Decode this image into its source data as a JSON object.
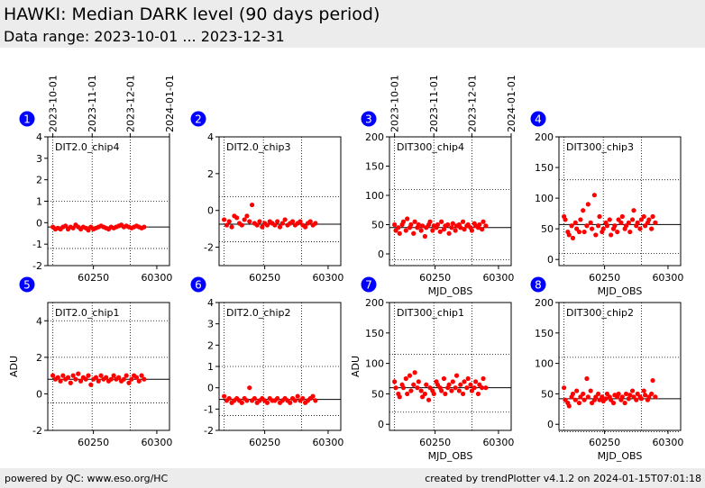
{
  "header": {
    "title": "HAWKI: Median DARK level (90 days period)",
    "subtitle": "Data range: 2023-10-01 ... 2023-12-31"
  },
  "footer": {
    "left": "powered by QC: www.eso.org/HC",
    "right": "created by trendPlotter v4.1.2 on 2024-01-15T07:01:18"
  },
  "date_axis": {
    "labels": [
      "2023-10-01",
      "2023-11-01",
      "2023-12-01",
      "2024-01-01"
    ],
    "mjd": [
      60218,
      60249,
      60279,
      60310
    ]
  },
  "colors": {
    "points": "#ff0000",
    "badge": "#0000ff",
    "median_line": "#000000"
  },
  "chart_data": [
    {
      "type": "scatter",
      "badge": "1",
      "label": "DIT2.0_chip4",
      "ylabel": "",
      "xlabel": "",
      "xlim": [
        60214,
        60310
      ],
      "ylim": [
        -2,
        4
      ],
      "yticks": [
        -2,
        -1,
        0,
        1,
        2,
        3,
        4
      ],
      "xticks": [
        60250,
        60300
      ],
      "median": -0.2,
      "hlines": [
        -1.2,
        1.0
      ],
      "date_ticks_top": true,
      "x": [
        60218,
        60220,
        60222,
        60224,
        60226,
        60228,
        60230,
        60232,
        60234,
        60236,
        60238,
        60240,
        60242,
        60244,
        60246,
        60248,
        60250,
        60252,
        60254,
        60256,
        60258,
        60260,
        60262,
        60264,
        60266,
        60268,
        60270,
        60272,
        60274,
        60276,
        60278,
        60280,
        60282,
        60284,
        60286,
        60288,
        60290
      ],
      "y": [
        -0.2,
        -0.3,
        -0.25,
        -0.3,
        -0.2,
        -0.15,
        -0.3,
        -0.2,
        -0.25,
        -0.1,
        -0.2,
        -0.3,
        -0.2,
        -0.25,
        -0.35,
        -0.2,
        -0.3,
        -0.25,
        -0.2,
        -0.15,
        -0.2,
        -0.25,
        -0.3,
        -0.2,
        -0.25,
        -0.2,
        -0.15,
        -0.1,
        -0.2,
        -0.15,
        -0.2,
        -0.25,
        -0.2,
        -0.15,
        -0.2,
        -0.25,
        -0.2
      ]
    },
    {
      "type": "scatter",
      "badge": "2",
      "label": "DIT2.0_chip3",
      "ylabel": "",
      "xlabel": "",
      "xlim": [
        60214,
        60310
      ],
      "ylim": [
        -3,
        4
      ],
      "yticks": [
        -2,
        0,
        2,
        4
      ],
      "xticks": [
        60250,
        60300
      ],
      "median": -0.75,
      "hlines": [
        -1.7,
        0.75
      ],
      "date_ticks_top": false,
      "x": [
        60218,
        60220,
        60222,
        60224,
        60226,
        60228,
        60230,
        60232,
        60234,
        60236,
        60238,
        60240,
        60242,
        60244,
        60246,
        60248,
        60250,
        60252,
        60254,
        60256,
        60258,
        60260,
        60262,
        60264,
        60266,
        60268,
        60270,
        60272,
        60274,
        60276,
        60278,
        60280,
        60282,
        60284,
        60286,
        60288,
        60290
      ],
      "y": [
        -0.5,
        -0.8,
        -0.6,
        -0.9,
        -0.3,
        -0.4,
        -0.7,
        -0.8,
        -0.5,
        -0.3,
        -0.6,
        0.3,
        -0.7,
        -0.8,
        -0.6,
        -0.9,
        -0.7,
        -0.8,
        -0.6,
        -0.7,
        -0.8,
        -0.6,
        -0.9,
        -0.7,
        -0.5,
        -0.8,
        -0.7,
        -0.6,
        -0.8,
        -0.7,
        -0.6,
        -0.8,
        -0.9,
        -0.7,
        -0.6,
        -0.8,
        -0.7
      ]
    },
    {
      "type": "scatter",
      "badge": "3",
      "label": "DIT300_chip4",
      "ylabel": "",
      "xlabel": "MJD_OBS",
      "xlim": [
        60214,
        60310
      ],
      "ylim": [
        -20,
        200
      ],
      "yticks": [
        0,
        50,
        100,
        150,
        200
      ],
      "xticks": [
        60250,
        60300
      ],
      "median": 45,
      "hlines": [
        -10,
        110
      ],
      "date_ticks_top": true,
      "x": [
        60218,
        60219,
        60221,
        60222,
        60224,
        60225,
        60227,
        60228,
        60230,
        60231,
        60233,
        60234,
        60236,
        60237,
        60239,
        60240,
        60242,
        60243,
        60245,
        60246,
        60248,
        60249,
        60251,
        60252,
        60254,
        60255,
        60257,
        60258,
        60260,
        60261,
        60263,
        60264,
        60266,
        60267,
        60269,
        60270,
        60272,
        60273,
        60275,
        60276,
        60278,
        60279,
        60281,
        60282,
        60284,
        60285,
        60287,
        60288,
        60290
      ],
      "y": [
        50,
        40,
        45,
        35,
        50,
        55,
        40,
        60,
        45,
        50,
        35,
        55,
        45,
        50,
        40,
        48,
        30,
        45,
        50,
        55,
        40,
        48,
        45,
        50,
        38,
        55,
        42,
        48,
        50,
        35,
        45,
        52,
        40,
        48,
        50,
        45,
        55,
        42,
        48,
        50,
        45,
        40,
        52,
        48,
        45,
        50,
        42,
        55,
        48
      ]
    },
    {
      "type": "scatter",
      "badge": "4",
      "label": "DIT300_chip3",
      "ylabel": "",
      "xlabel": "MJD_OBS",
      "xlim": [
        60214,
        60310
      ],
      "ylim": [
        -10,
        200
      ],
      "yticks": [
        0,
        50,
        100,
        150,
        200
      ],
      "xticks": [
        60250,
        60300
      ],
      "median": 57,
      "hlines": [
        10,
        130
      ],
      "date_ticks_top": false,
      "x": [
        60218,
        60219,
        60221,
        60222,
        60224,
        60225,
        60227,
        60228,
        60230,
        60231,
        60233,
        60234,
        60236,
        60237,
        60239,
        60240,
        60242,
        60243,
        60245,
        60246,
        60248,
        60249,
        60251,
        60252,
        60254,
        60255,
        60257,
        60258,
        60260,
        60261,
        60263,
        60264,
        60266,
        60267,
        60269,
        60270,
        60272,
        60273,
        60275,
        60276,
        60278,
        60279,
        60281,
        60282,
        60284,
        60285,
        60287,
        60288,
        60290
      ],
      "y": [
        70,
        65,
        45,
        40,
        55,
        35,
        60,
        50,
        45,
        65,
        80,
        45,
        55,
        90,
        60,
        50,
        105,
        40,
        55,
        70,
        45,
        50,
        60,
        55,
        65,
        40,
        50,
        55,
        45,
        65,
        60,
        70,
        50,
        55,
        60,
        45,
        65,
        80,
        55,
        60,
        50,
        65,
        70,
        55,
        60,
        65,
        50,
        70,
        60
      ]
    },
    {
      "type": "scatter",
      "badge": "5",
      "label": "DIT2.0_chip1",
      "ylabel": "ADU",
      "xlabel": "",
      "xlim": [
        60214,
        60310
      ],
      "ylim": [
        -2,
        5
      ],
      "yticks": [
        -2,
        0,
        2,
        4
      ],
      "xticks": [
        60250,
        60300
      ],
      "median": 0.8,
      "hlines": [
        -0.5,
        2.0,
        4.0
      ],
      "date_ticks_top": false,
      "x": [
        60218,
        60220,
        60222,
        60224,
        60226,
        60228,
        60230,
        60232,
        60234,
        60236,
        60238,
        60240,
        60242,
        60244,
        60246,
        60248,
        60250,
        60252,
        60254,
        60256,
        60258,
        60260,
        60262,
        60264,
        60266,
        60268,
        60270,
        60272,
        60274,
        60276,
        60278,
        60280,
        60282,
        60284,
        60286,
        60288,
        60290
      ],
      "y": [
        1.0,
        0.8,
        0.9,
        0.7,
        1.0,
        0.8,
        0.9,
        0.6,
        1.0,
        0.8,
        1.1,
        0.7,
        0.9,
        0.8,
        1.0,
        0.5,
        0.8,
        0.9,
        0.7,
        1.0,
        0.8,
        0.9,
        0.7,
        0.8,
        1.0,
        0.8,
        0.9,
        0.7,
        0.8,
        1.0,
        0.6,
        0.8,
        1.0,
        0.9,
        0.7,
        1.0,
        0.8
      ]
    },
    {
      "type": "scatter",
      "badge": "6",
      "label": "DIT2.0_chip2",
      "ylabel": "",
      "xlabel": "",
      "xlim": [
        60214,
        60310
      ],
      "ylim": [
        -2,
        4
      ],
      "yticks": [
        -2,
        -1,
        0,
        1,
        2,
        3,
        4
      ],
      "xticks": [
        60250,
        60300
      ],
      "median": -0.55,
      "hlines": [
        -1.3,
        1.0
      ],
      "date_ticks_top": false,
      "x": [
        60218,
        60220,
        60222,
        60224,
        60226,
        60228,
        60230,
        60232,
        60234,
        60236,
        60238,
        60240,
        60242,
        60244,
        60246,
        60248,
        60250,
        60252,
        60254,
        60256,
        60258,
        60260,
        60262,
        60264,
        60266,
        60268,
        60270,
        60272,
        60274,
        60276,
        60278,
        60280,
        60282,
        60284,
        60286,
        60288,
        60290
      ],
      "y": [
        -0.4,
        -0.6,
        -0.5,
        -0.7,
        -0.6,
        -0.5,
        -0.6,
        -0.7,
        -0.5,
        -0.6,
        0.0,
        -0.6,
        -0.5,
        -0.7,
        -0.6,
        -0.5,
        -0.6,
        -0.7,
        -0.5,
        -0.6,
        -0.6,
        -0.5,
        -0.7,
        -0.6,
        -0.5,
        -0.6,
        -0.7,
        -0.5,
        -0.6,
        -0.4,
        -0.6,
        -0.5,
        -0.7,
        -0.6,
        -0.5,
        -0.4,
        -0.6
      ]
    },
    {
      "type": "scatter",
      "badge": "7",
      "label": "DIT300_chip1",
      "ylabel": "ADU",
      "xlabel": "MJD_OBS",
      "xlim": [
        60214,
        60310
      ],
      "ylim": [
        -10,
        200
      ],
      "yticks": [
        0,
        50,
        100,
        150,
        200
      ],
      "xticks": [
        60250,
        60300
      ],
      "median": 60,
      "hlines": [
        20,
        115
      ],
      "date_ticks_top": false,
      "x": [
        60218,
        60219,
        60221,
        60222,
        60224,
        60225,
        60227,
        60228,
        60230,
        60231,
        60233,
        60234,
        60236,
        60237,
        60239,
        60240,
        60242,
        60243,
        60245,
        60246,
        60248,
        60249,
        60251,
        60252,
        60254,
        60255,
        60257,
        60258,
        60260,
        60261,
        60263,
        60264,
        60266,
        60267,
        60269,
        60270,
        60272,
        60273,
        60275,
        60276,
        60278,
        60279,
        60281,
        60282,
        60284,
        60285,
        60287,
        60288,
        60290
      ],
      "y": [
        70,
        60,
        50,
        45,
        65,
        60,
        75,
        50,
        80,
        55,
        65,
        85,
        60,
        70,
        55,
        45,
        50,
        65,
        40,
        60,
        55,
        50,
        70,
        65,
        60,
        55,
        75,
        50,
        60,
        65,
        55,
        70,
        60,
        80,
        55,
        65,
        50,
        70,
        60,
        75,
        65,
        55,
        60,
        70,
        50,
        65,
        60,
        75,
        60
      ]
    },
    {
      "type": "scatter",
      "badge": "8",
      "label": "DIT300_chip2",
      "ylabel": "",
      "xlabel": "MJD_OBS",
      "xlim": [
        60214,
        60310
      ],
      "ylim": [
        -10,
        200
      ],
      "yticks": [
        0,
        50,
        100,
        150,
        200
      ],
      "xticks": [
        60250,
        60300
      ],
      "median": 42,
      "hlines": [
        -12,
        110
      ],
      "date_ticks_top": false,
      "x": [
        60218,
        60219,
        60221,
        60222,
        60224,
        60225,
        60227,
        60228,
        60230,
        60231,
        60233,
        60234,
        60236,
        60237,
        60239,
        60240,
        60242,
        60243,
        60245,
        60246,
        60248,
        60249,
        60251,
        60252,
        60254,
        60255,
        60257,
        60258,
        60260,
        60261,
        60263,
        60264,
        60266,
        60267,
        60269,
        60270,
        60272,
        60273,
        60275,
        60276,
        60278,
        60279,
        60281,
        60282,
        60284,
        60285,
        60287,
        60288,
        60290
      ],
      "y": [
        60,
        40,
        35,
        30,
        45,
        50,
        40,
        55,
        35,
        45,
        50,
        40,
        75,
        45,
        55,
        35,
        40,
        45,
        50,
        40,
        45,
        38,
        42,
        50,
        45,
        40,
        35,
        48,
        45,
        50,
        40,
        45,
        35,
        50,
        42,
        48,
        55,
        45,
        40,
        50,
        45,
        42,
        55,
        48,
        40,
        45,
        50,
        72,
        45
      ]
    }
  ]
}
